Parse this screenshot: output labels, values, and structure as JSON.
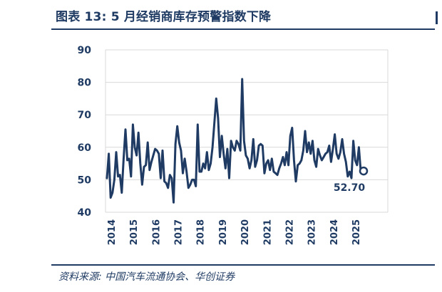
{
  "header": {
    "title": "图表 13:  5 月经销商库存预警指数下降"
  },
  "footer": {
    "source": "资料来源:  中国汽车流通协会、华创证券"
  },
  "colors": {
    "series": "#1f3b63",
    "grid": "#d9d9d9",
    "text": "#1f3b63"
  },
  "chart_data": {
    "type": "line",
    "title": "5 月经销商库存预警指数下降",
    "xlabel": "",
    "ylabel": "",
    "ylim": [
      40,
      90
    ],
    "yticks": [
      40,
      50,
      60,
      70,
      80,
      90
    ],
    "xticks": [
      "2014",
      "2015",
      "2016",
      "2017",
      "2018",
      "2019",
      "2020",
      "2021",
      "2022",
      "2023",
      "2024",
      "2025"
    ],
    "grid": "horizontal",
    "legend": "none",
    "start": "2014-01",
    "frequency": "monthly",
    "series": [
      {
        "values": [
          50.5,
          58.0,
          44.5,
          46.0,
          50.0,
          58.5,
          51.0,
          51.5,
          46.0,
          56.5,
          65.5,
          56.0,
          56.5,
          51.0,
          67.0,
          60.0,
          57.5,
          64.5,
          55.0,
          48.5,
          54.0,
          54.5,
          61.5,
          53.0,
          55.5,
          57.5,
          59.5,
          59.0,
          58.0,
          50.5,
          59.0,
          49.5,
          49.0,
          47.5,
          51.5,
          50.5,
          43.0,
          61.0,
          66.5,
          61.5,
          59.0,
          52.0,
          56.5,
          52.5,
          47.5,
          48.5,
          50.0,
          50.0,
          48.0,
          67.0,
          52.5,
          52.5,
          55.0,
          53.5,
          58.5,
          53.0,
          55.0,
          60.0,
          67.5,
          75.0,
          69.0,
          57.0,
          63.5,
          58.0,
          53.5,
          59.5,
          50.5,
          62.0,
          60.0,
          59.0,
          62.0,
          61.0,
          59.0,
          81.0,
          62.0,
          57.5,
          56.5,
          53.5,
          56.0,
          62.5,
          54.0,
          56.0,
          60.5,
          61.0,
          60.5,
          52.0,
          55.0,
          56.0,
          53.0,
          56.5,
          52.5,
          52.0,
          51.5,
          53.5,
          55.0,
          57.0,
          54.5,
          58.5,
          54.5,
          63.5,
          66.0,
          56.0,
          49.5,
          54.5,
          55.0,
          56.0,
          59.0,
          65.0,
          58.5,
          61.5,
          58.0,
          62.0,
          56.0,
          54.0,
          59.5,
          57.5,
          56.0,
          57.0,
          58.0,
          58.5,
          60.5,
          55.5,
          59.5,
          64.0,
          58.0,
          56.5,
          58.5,
          62.5,
          58.0,
          55.5,
          51.0,
          52.5,
          50.5,
          62.0,
          56.0,
          54.5,
          60.0,
          52.7
        ]
      }
    ],
    "last_point_label": "52.70"
  }
}
